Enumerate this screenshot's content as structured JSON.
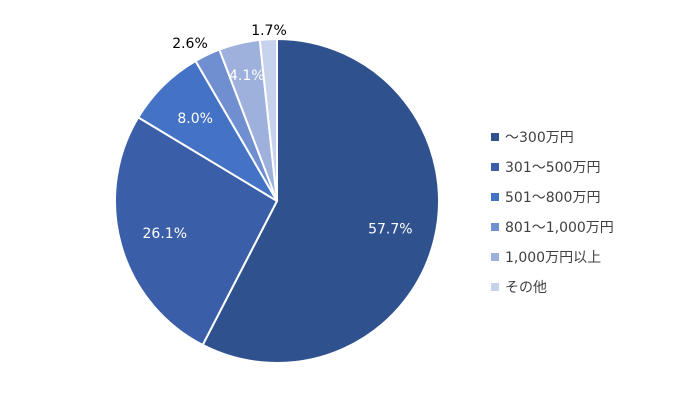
{
  "chart_data": {
    "type": "pie",
    "categories": [
      "〜300万円",
      "301〜500万円",
      "501〜800万円",
      "801〜1,000万円",
      "1,000万円以上",
      "その他"
    ],
    "values": [
      57.7,
      26.1,
      8.0,
      2.6,
      4.1,
      1.7
    ],
    "value_labels": [
      "57.7%",
      "26.1%",
      "8.0%",
      "2.6%",
      "4.1%",
      "1.7%"
    ],
    "colors": [
      "#2f528f",
      "#3a5fa8",
      "#4472c4",
      "#6f8fd0",
      "#9eb0dc",
      "#c7d2ec"
    ],
    "label_colors": [
      "#ffffff",
      "#ffffff",
      "#ffffff",
      "#000000",
      "#ffffff",
      "#000000"
    ],
    "label_placement": [
      "inside",
      "inside",
      "inside",
      "outside",
      "inside",
      "outside"
    ],
    "legend_position": "right",
    "start_angle": "top, clockwise"
  }
}
